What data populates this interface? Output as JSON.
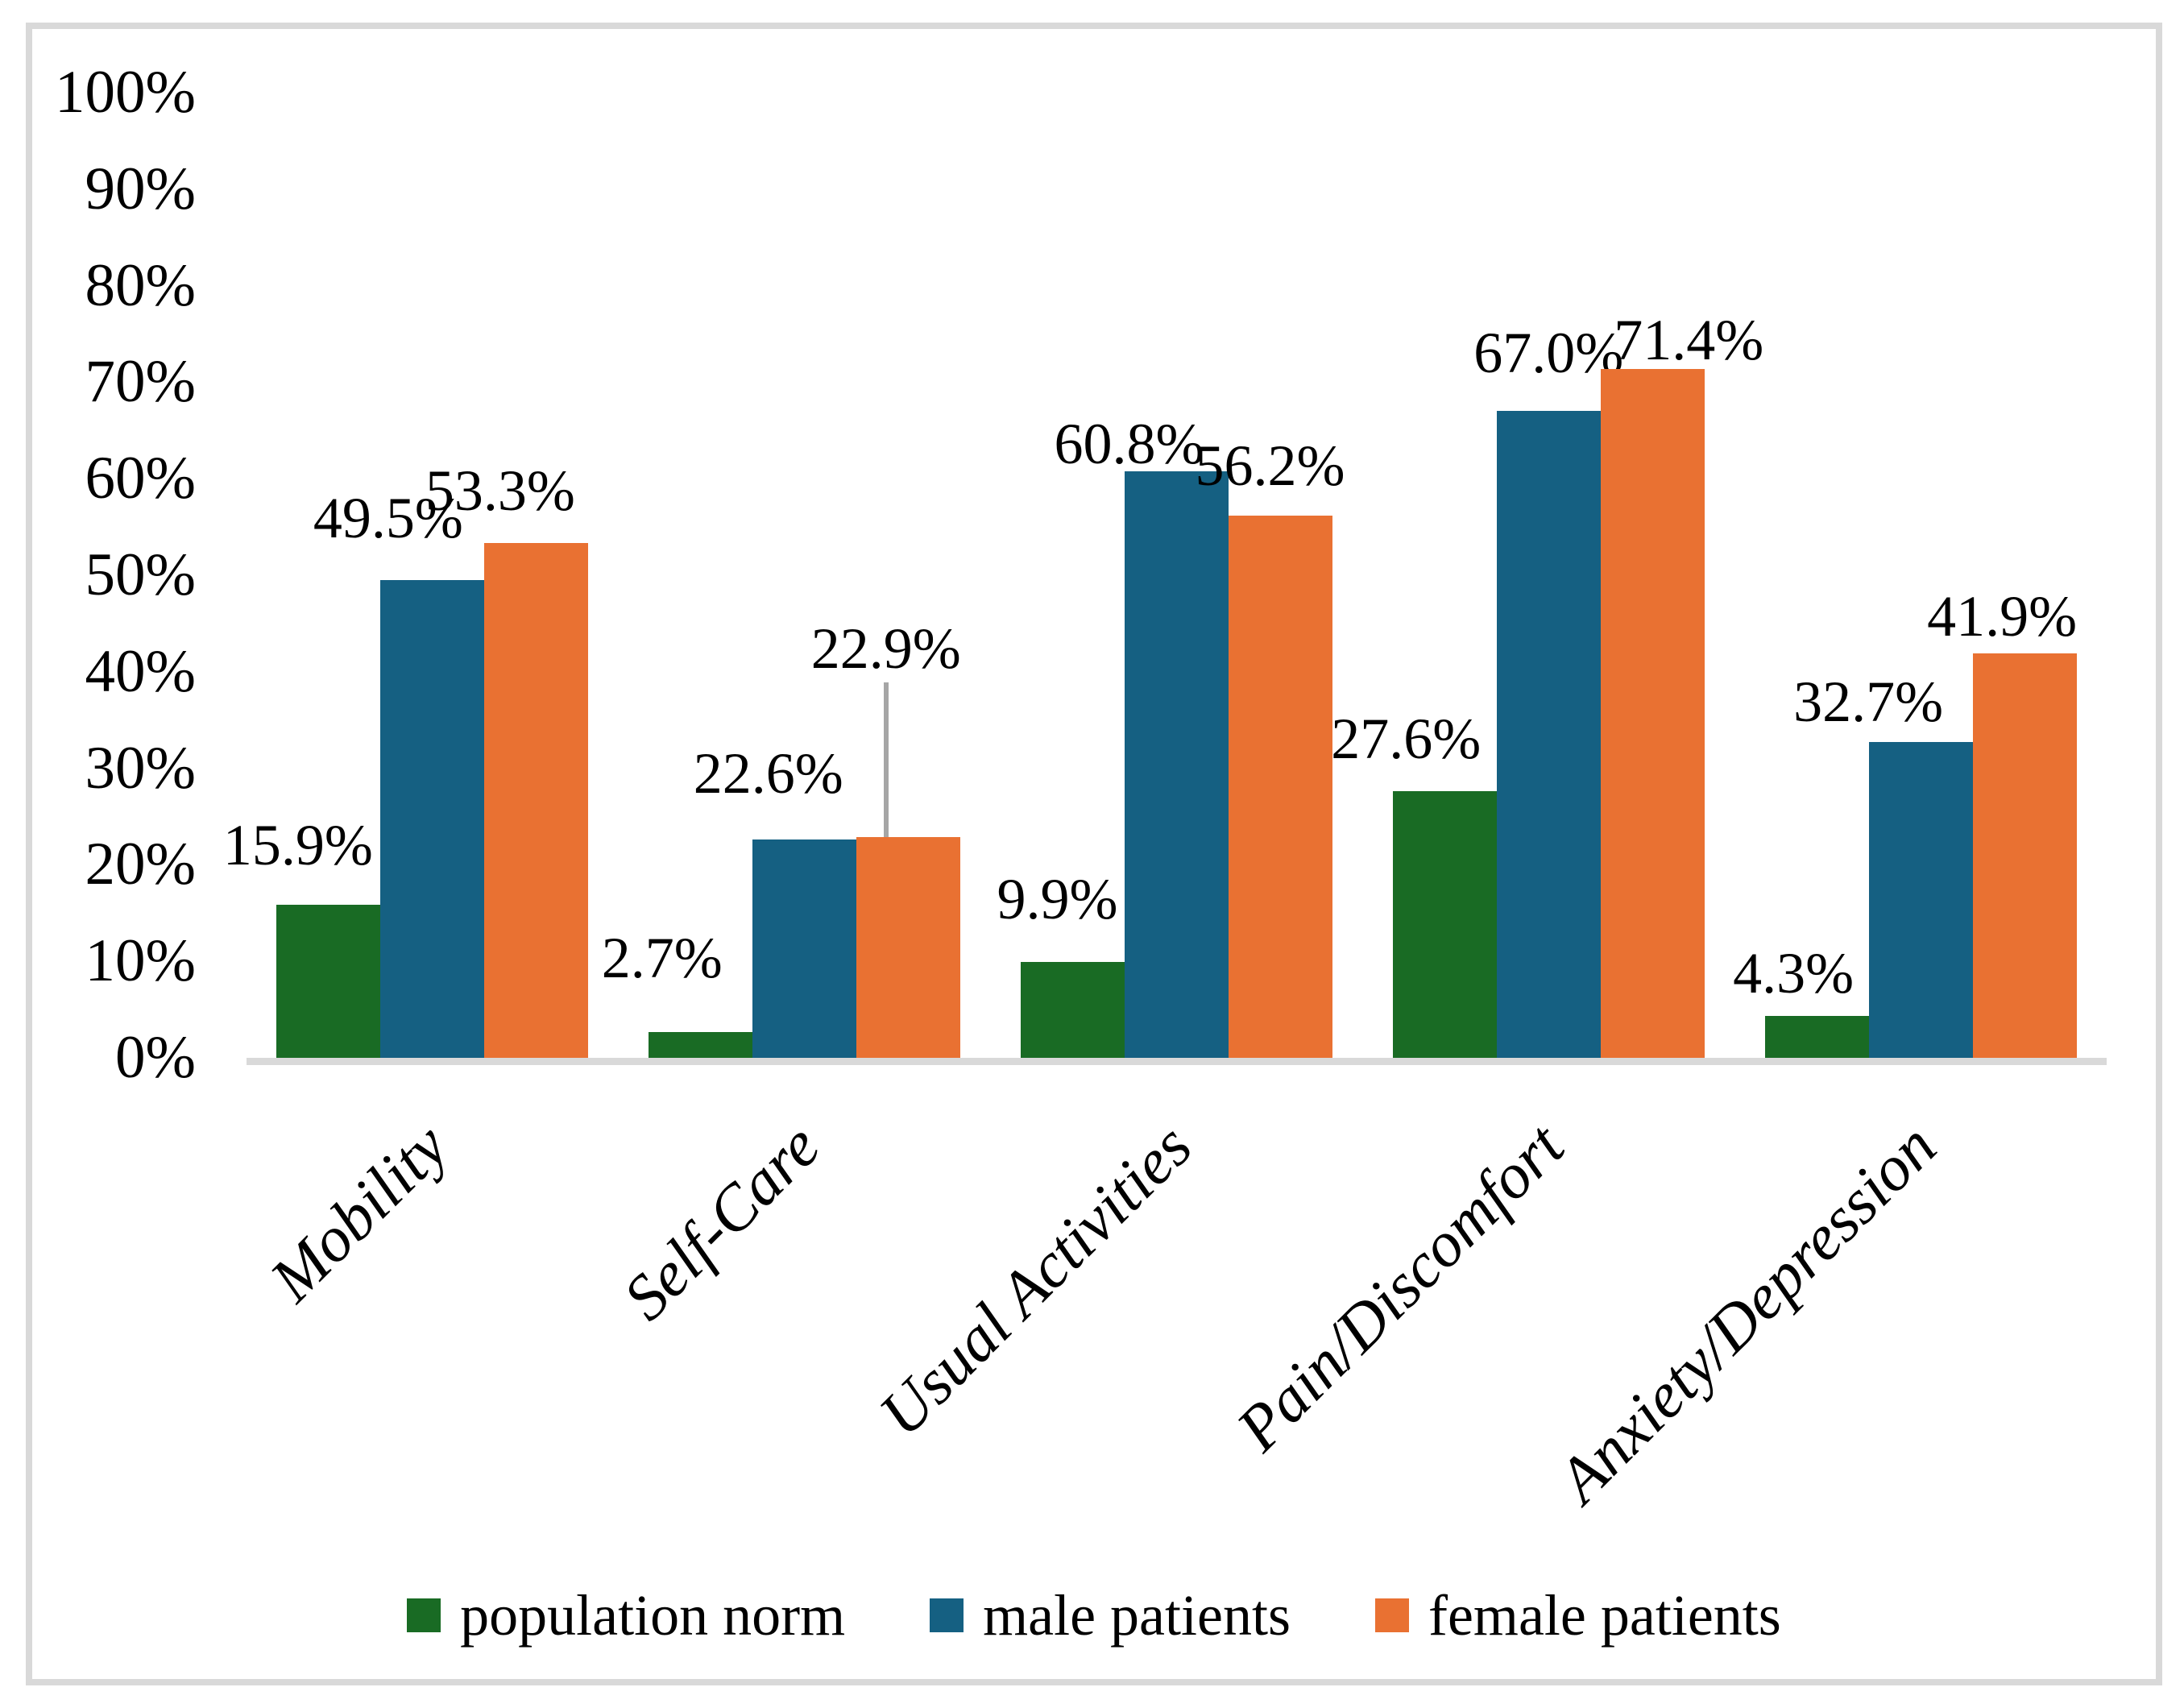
{
  "chart_data": {
    "type": "bar",
    "categories": [
      "Mobility",
      "Self-Care",
      "Usual Activities",
      "Pain/Discomfort",
      "Anxiety/Depression"
    ],
    "series": [
      {
        "name": "population norm",
        "color": "#196B24",
        "values": [
          15.9,
          2.7,
          9.9,
          27.6,
          4.3
        ],
        "labels": [
          "15.9%",
          "2.7%",
          "9.9%",
          "27.6%",
          "4.3%"
        ]
      },
      {
        "name": "male patients",
        "color": "#156082",
        "values": [
          49.5,
          22.6,
          60.8,
          67.0,
          32.7
        ],
        "labels": [
          "49.5%",
          "22.6%",
          "60.8%",
          "67.0%",
          "32.7%"
        ]
      },
      {
        "name": "female patients",
        "color": "#E97132",
        "values": [
          53.3,
          22.9,
          56.2,
          71.4,
          41.9
        ],
        "labels": [
          "53.3%",
          "22.9%",
          "56.2%",
          "71.4%",
          "41.9%"
        ]
      }
    ],
    "title": "",
    "xlabel": "",
    "ylabel": "",
    "ylim": [
      0,
      100
    ],
    "y_ticks": [
      0,
      10,
      20,
      30,
      40,
      50,
      60,
      70,
      80,
      90,
      100
    ],
    "y_tick_labels": [
      "0%",
      "10%",
      "20%",
      "30%",
      "40%",
      "50%",
      "60%",
      "70%",
      "80%",
      "90%",
      "100%"
    ],
    "grid": false,
    "legend_position": "bottom",
    "axis_line_color": "#D9D9D9",
    "frame_border_color": "#D9D9D9",
    "annotations": {
      "leader_line": {
        "category": "Self-Care",
        "series": "female patients",
        "label": "22.9%",
        "color": "#A6A6A6"
      }
    }
  }
}
